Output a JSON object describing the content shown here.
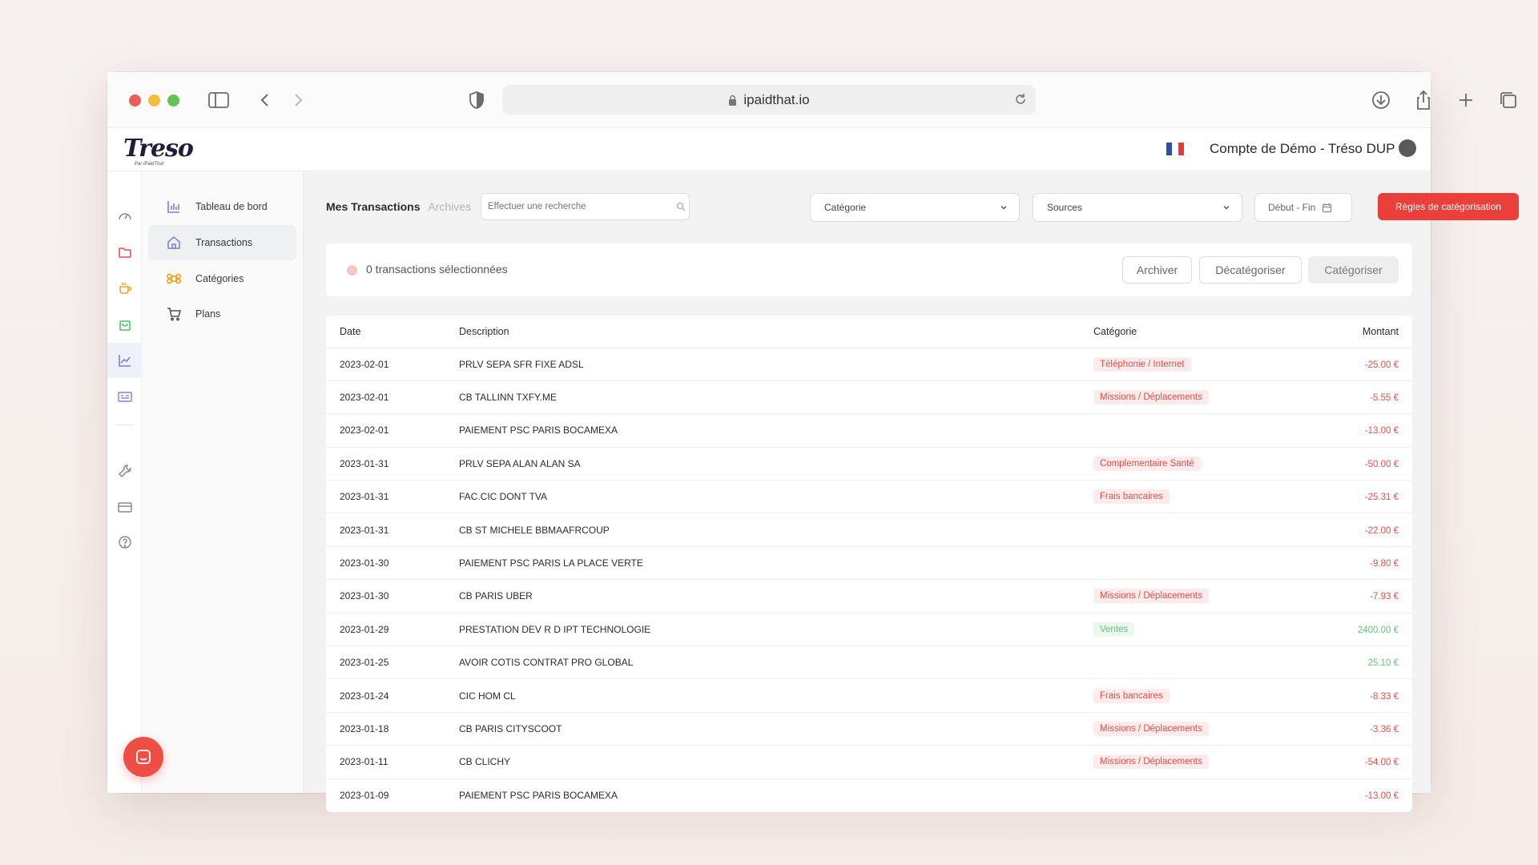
{
  "browser": {
    "url": "ipaidthat.io"
  },
  "app": {
    "logo_text": "Treso",
    "logo_sub": "Par iPaidThat",
    "account_name": "Compte de Démo - Tréso DUP"
  },
  "subnav": {
    "items": [
      {
        "label": "Tableau de bord",
        "icon": "bar-chart-icon"
      },
      {
        "label": "Transactions",
        "icon": "home-icon"
      },
      {
        "label": "Catégories",
        "icon": "command-icon"
      },
      {
        "label": "Plans",
        "icon": "cart-icon"
      }
    ]
  },
  "toolbar": {
    "tab_active": "Mes Transactions",
    "tab_archives": "Archives",
    "search_placeholder": "Effectuer une recherche",
    "category_select": "Catégorie",
    "sources_select": "Sources",
    "date_range": "Début - Fin",
    "rules_button": "Règles de catégorisation"
  },
  "selection": {
    "text": "0 transactions sélectionnées",
    "archive": "Archiver",
    "uncategorize": "Décatégoriser",
    "categorize": "Catégoriser"
  },
  "table": {
    "headers": {
      "date": "Date",
      "description": "Description",
      "category": "Catégorie",
      "amount": "Montant"
    },
    "rows": [
      {
        "date": "2023-02-01",
        "description": "PRLV SEPA SFR FIXE ADSL",
        "category": "Téléphonie / Internet",
        "tone": "red",
        "amount": "-25.00 €"
      },
      {
        "date": "2023-02-01",
        "description": "CB TALLINN TXFY.ME",
        "category": "Missions / Déplacements",
        "tone": "red",
        "amount": "-5.55 €"
      },
      {
        "date": "2023-02-01",
        "description": "PAIEMENT PSC PARIS BOCAMEXA",
        "category": "",
        "tone": "red",
        "amount": "-13.00 €"
      },
      {
        "date": "2023-01-31",
        "description": "PRLV SEPA ALAN ALAN SA",
        "category": "Complementaire Santé",
        "tone": "red",
        "amount": "-50.00 €"
      },
      {
        "date": "2023-01-31",
        "description": "FAC.CIC DONT TVA",
        "category": "Frais bancaires",
        "tone": "red",
        "amount": "-25.31 €"
      },
      {
        "date": "2023-01-31",
        "description": "CB ST MICHELE BBMAAFRCOUP",
        "category": "",
        "tone": "red",
        "amount": "-22.00 €"
      },
      {
        "date": "2023-01-30",
        "description": "PAIEMENT PSC PARIS LA PLACE VERTE",
        "category": "",
        "tone": "red",
        "amount": "-9.80 €"
      },
      {
        "date": "2023-01-30",
        "description": "CB PARIS UBER",
        "category": "Missions / Déplacements",
        "tone": "red",
        "amount": "-7.93 €"
      },
      {
        "date": "2023-01-29",
        "description": "PRESTATION DEV R D IPT TECHNOLOGIE",
        "category": "Ventes",
        "tone": "green",
        "amount": "2400.00 €"
      },
      {
        "date": "2023-01-25",
        "description": "AVOIR COTIS CONTRAT PRO GLOBAL",
        "category": "",
        "tone": "green",
        "amount": "25.10 €"
      },
      {
        "date": "2023-01-24",
        "description": "CIC HOM CL",
        "category": "Frais bancaires",
        "tone": "red",
        "amount": "-8.33 €"
      },
      {
        "date": "2023-01-18",
        "description": "CB PARIS CITYSCOOT",
        "category": "Missions / Déplacements",
        "tone": "red",
        "amount": "-3.36 €"
      },
      {
        "date": "2023-01-11",
        "description": "CB CLICHY",
        "category": "Missions / Déplacements",
        "tone": "red",
        "amount": "-54.00 €"
      },
      {
        "date": "2023-01-09",
        "description": "PAIEMENT PSC PARIS BOCAMEXA",
        "category": "",
        "tone": "red",
        "amount": "-13.00 €"
      }
    ]
  },
  "colors": {
    "accent_red": "#ea3f3a",
    "positive_green": "#65c47a",
    "sidebar_active": "#7a86c9"
  }
}
